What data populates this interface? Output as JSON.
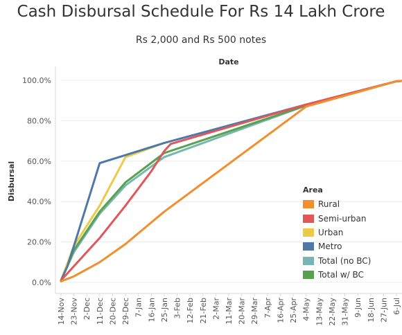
{
  "chart_data": {
    "type": "line",
    "title": "Cash Disbursal Schedule For Rs 14 Lakh Crore",
    "subtitle": "Rs 2,000 and Rs 500 notes",
    "xlabel": "Date",
    "ylabel": "Disbursal",
    "ylim": [
      0,
      100
    ],
    "yticks": [
      "0.0%",
      "20.0%",
      "40.0%",
      "60.0%",
      "80.0%",
      "100.0%"
    ],
    "grid": true,
    "legend_position": "right",
    "legend_title": "Area",
    "x_categories": [
      "14-Nov",
      "23-Nov",
      "2-Dec",
      "11-Dec",
      "20-Dec",
      "29-Dec",
      "7-Jan",
      "16-Jan",
      "25-Jan",
      "3-Feb",
      "12-Feb",
      "21-Feb",
      "2-Mar",
      "11-Mar",
      "20-Mar",
      "29-Mar",
      "7-Apr",
      "16-Apr",
      "25-Apr",
      "4-May",
      "13-May",
      "22-May",
      "31-May",
      "9-Jun",
      "18-Jun",
      "27-Jun",
      "6-Jul"
    ],
    "series": [
      {
        "name": "Rural",
        "color": "#f28e2b",
        "x": [
          0,
          1,
          3,
          5,
          8,
          19,
          26,
          27
        ],
        "y": [
          0.5,
          3,
          10,
          19,
          35,
          87,
          99.5,
          100
        ]
      },
      {
        "name": "Semi-urban",
        "color": "#e15759",
        "x": [
          0,
          1,
          3,
          5,
          7,
          8,
          8.5,
          19,
          26,
          27
        ],
        "y": [
          1,
          8,
          22,
          38,
          55,
          65,
          68.5,
          88,
          99.5,
          100
        ]
      },
      {
        "name": "Urban",
        "color": "#edc948",
        "x": [
          0,
          1,
          3,
          5,
          8
        ],
        "y": [
          1,
          18,
          38,
          62,
          69
        ]
      },
      {
        "name": "Metro",
        "color": "#4e79a7",
        "x": [
          0,
          0.5,
          1,
          3,
          5,
          8,
          19,
          26,
          27
        ],
        "y": [
          1,
          8,
          18,
          59,
          63,
          69,
          88,
          99.5,
          100
        ]
      },
      {
        "name": "Total (no BC)",
        "color": "#76b7b2",
        "x": [
          0,
          1,
          3,
          5,
          8,
          19,
          26,
          27
        ],
        "y": [
          1,
          15,
          34,
          48,
          62,
          87.5,
          99.5,
          100
        ]
      },
      {
        "name": "Total w/ BC",
        "color": "#59a14f",
        "x": [
          0,
          1,
          3,
          5,
          8,
          19,
          26,
          27
        ],
        "y": [
          1,
          16,
          35,
          49.5,
          64,
          87.5,
          99.5,
          100
        ]
      }
    ]
  }
}
